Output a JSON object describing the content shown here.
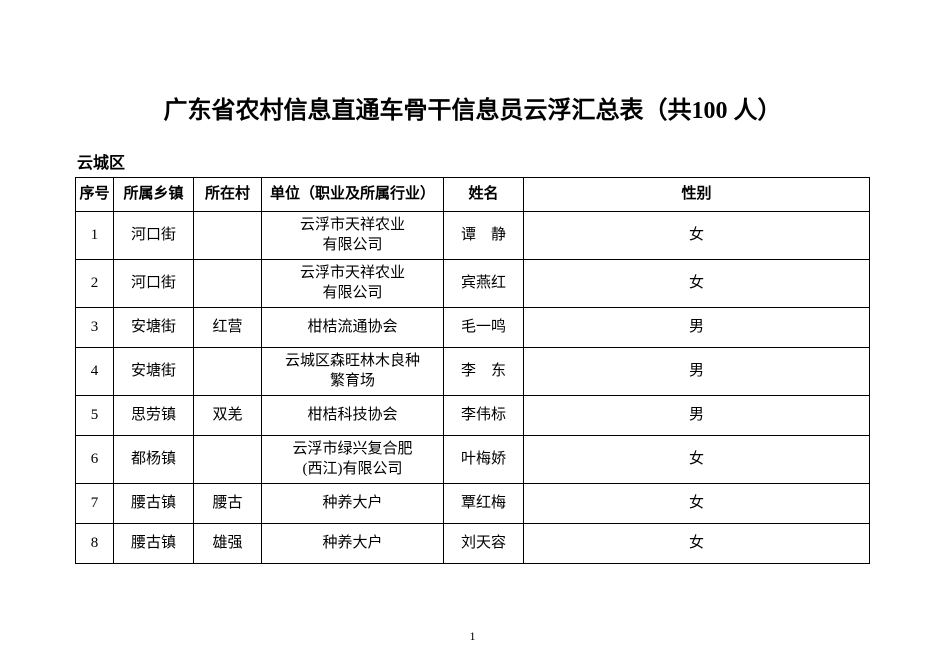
{
  "title": "广东省农村信息直通车骨干信息员云浮汇总表（共100 人）",
  "region": "云城区",
  "headers": {
    "seq": "序号",
    "town": "所属乡镇",
    "village": "所在村",
    "org": "单位（职业及所属行业）",
    "name": "姓名",
    "gender": "性别"
  },
  "rows": [
    {
      "seq": "1",
      "town": "河口街",
      "village": "",
      "org": "云浮市天祥农业\n有限公司",
      "name": "谭　静",
      "gender": "女"
    },
    {
      "seq": "2",
      "town": "河口街",
      "village": "",
      "org": "云浮市天祥农业\n有限公司",
      "name": "宾燕红",
      "gender": "女"
    },
    {
      "seq": "3",
      "town": "安塘街",
      "village": "红营",
      "org": "柑桔流通协会",
      "name": "毛一鸣",
      "gender": "男"
    },
    {
      "seq": "4",
      "town": "安塘街",
      "village": "",
      "org": "云城区森旺林木良种\n繁育场",
      "name": "李　东",
      "gender": "男"
    },
    {
      "seq": "5",
      "town": "思劳镇",
      "village": "双羌",
      "org": "柑桔科技协会",
      "name": "李伟标",
      "gender": "男"
    },
    {
      "seq": "6",
      "town": "都杨镇",
      "village": "",
      "org": "云浮市绿兴复合肥\n(西江)有限公司",
      "name": "叶梅娇",
      "gender": "女"
    },
    {
      "seq": "7",
      "town": "腰古镇",
      "village": "腰古",
      "org": "种养大户",
      "name": "覃红梅",
      "gender": "女"
    },
    {
      "seq": "8",
      "town": "腰古镇",
      "village": "雄强",
      "org": "种养大户",
      "name": "刘天容",
      "gender": "女"
    }
  ],
  "pageNumber": "1",
  "style": {
    "background_color": "#ffffff",
    "text_color": "#000000",
    "border_color": "#000000",
    "title_fontsize": 24,
    "body_fontsize": 15,
    "font_family": "SimSun"
  }
}
